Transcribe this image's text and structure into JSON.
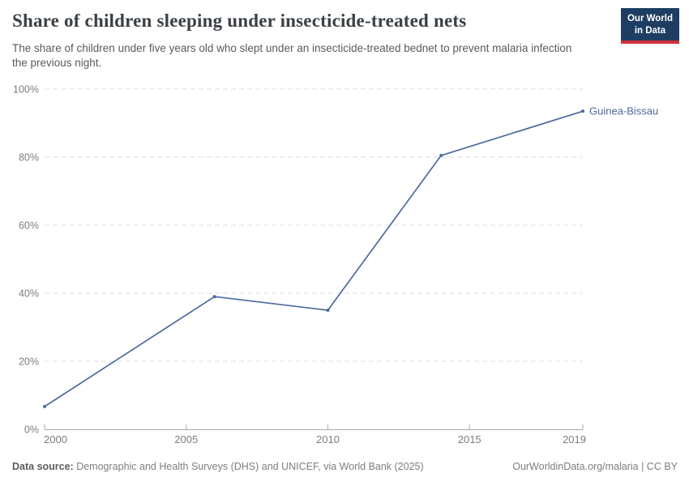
{
  "header": {
    "title": "Share of children sleeping under insecticide-treated nets",
    "subtitle": "The share of children under five years old who slept under an insecticide-treated bednet to prevent malaria infection the previous night."
  },
  "logo": {
    "line1": "Our World",
    "line2": "in Data",
    "bg_color": "#1d3d63",
    "stripe_color": "#d13239"
  },
  "chart_data": {
    "type": "line",
    "title": "Share of children sleeping under insecticide-treated nets",
    "unit": "%",
    "series": [
      {
        "name": "Guinea-Bissau",
        "color": "#4c6a9c",
        "x": [
          2000,
          2006,
          2010,
          2014,
          2019
        ],
        "y": [
          6.7,
          39,
          35,
          80.5,
          93.5
        ]
      }
    ],
    "xlim": [
      2000,
      2019
    ],
    "ylim": [
      0,
      100
    ],
    "x_ticks": [
      2000,
      2005,
      2010,
      2015,
      2019
    ],
    "x_tick_labels": [
      "2000",
      "2005",
      "2010",
      "2015",
      "2019"
    ],
    "y_ticks": [
      0,
      20,
      40,
      60,
      80,
      100
    ],
    "y_tick_labels": [
      "0%",
      "20%",
      "40%",
      "60%",
      "80%",
      "100%"
    ],
    "grid": "horizontal-dashed",
    "grid_color": "#dcdcdc",
    "axis_color": "#a8a8a8",
    "legend": "end-of-line-label"
  },
  "footer": {
    "data_source_label": "Data source:",
    "data_source_text": " Demographic and Health Surveys (DHS) and UNICEF, via World Bank (2025)",
    "link": "OurWorldinData.org/malaria | CC BY"
  }
}
